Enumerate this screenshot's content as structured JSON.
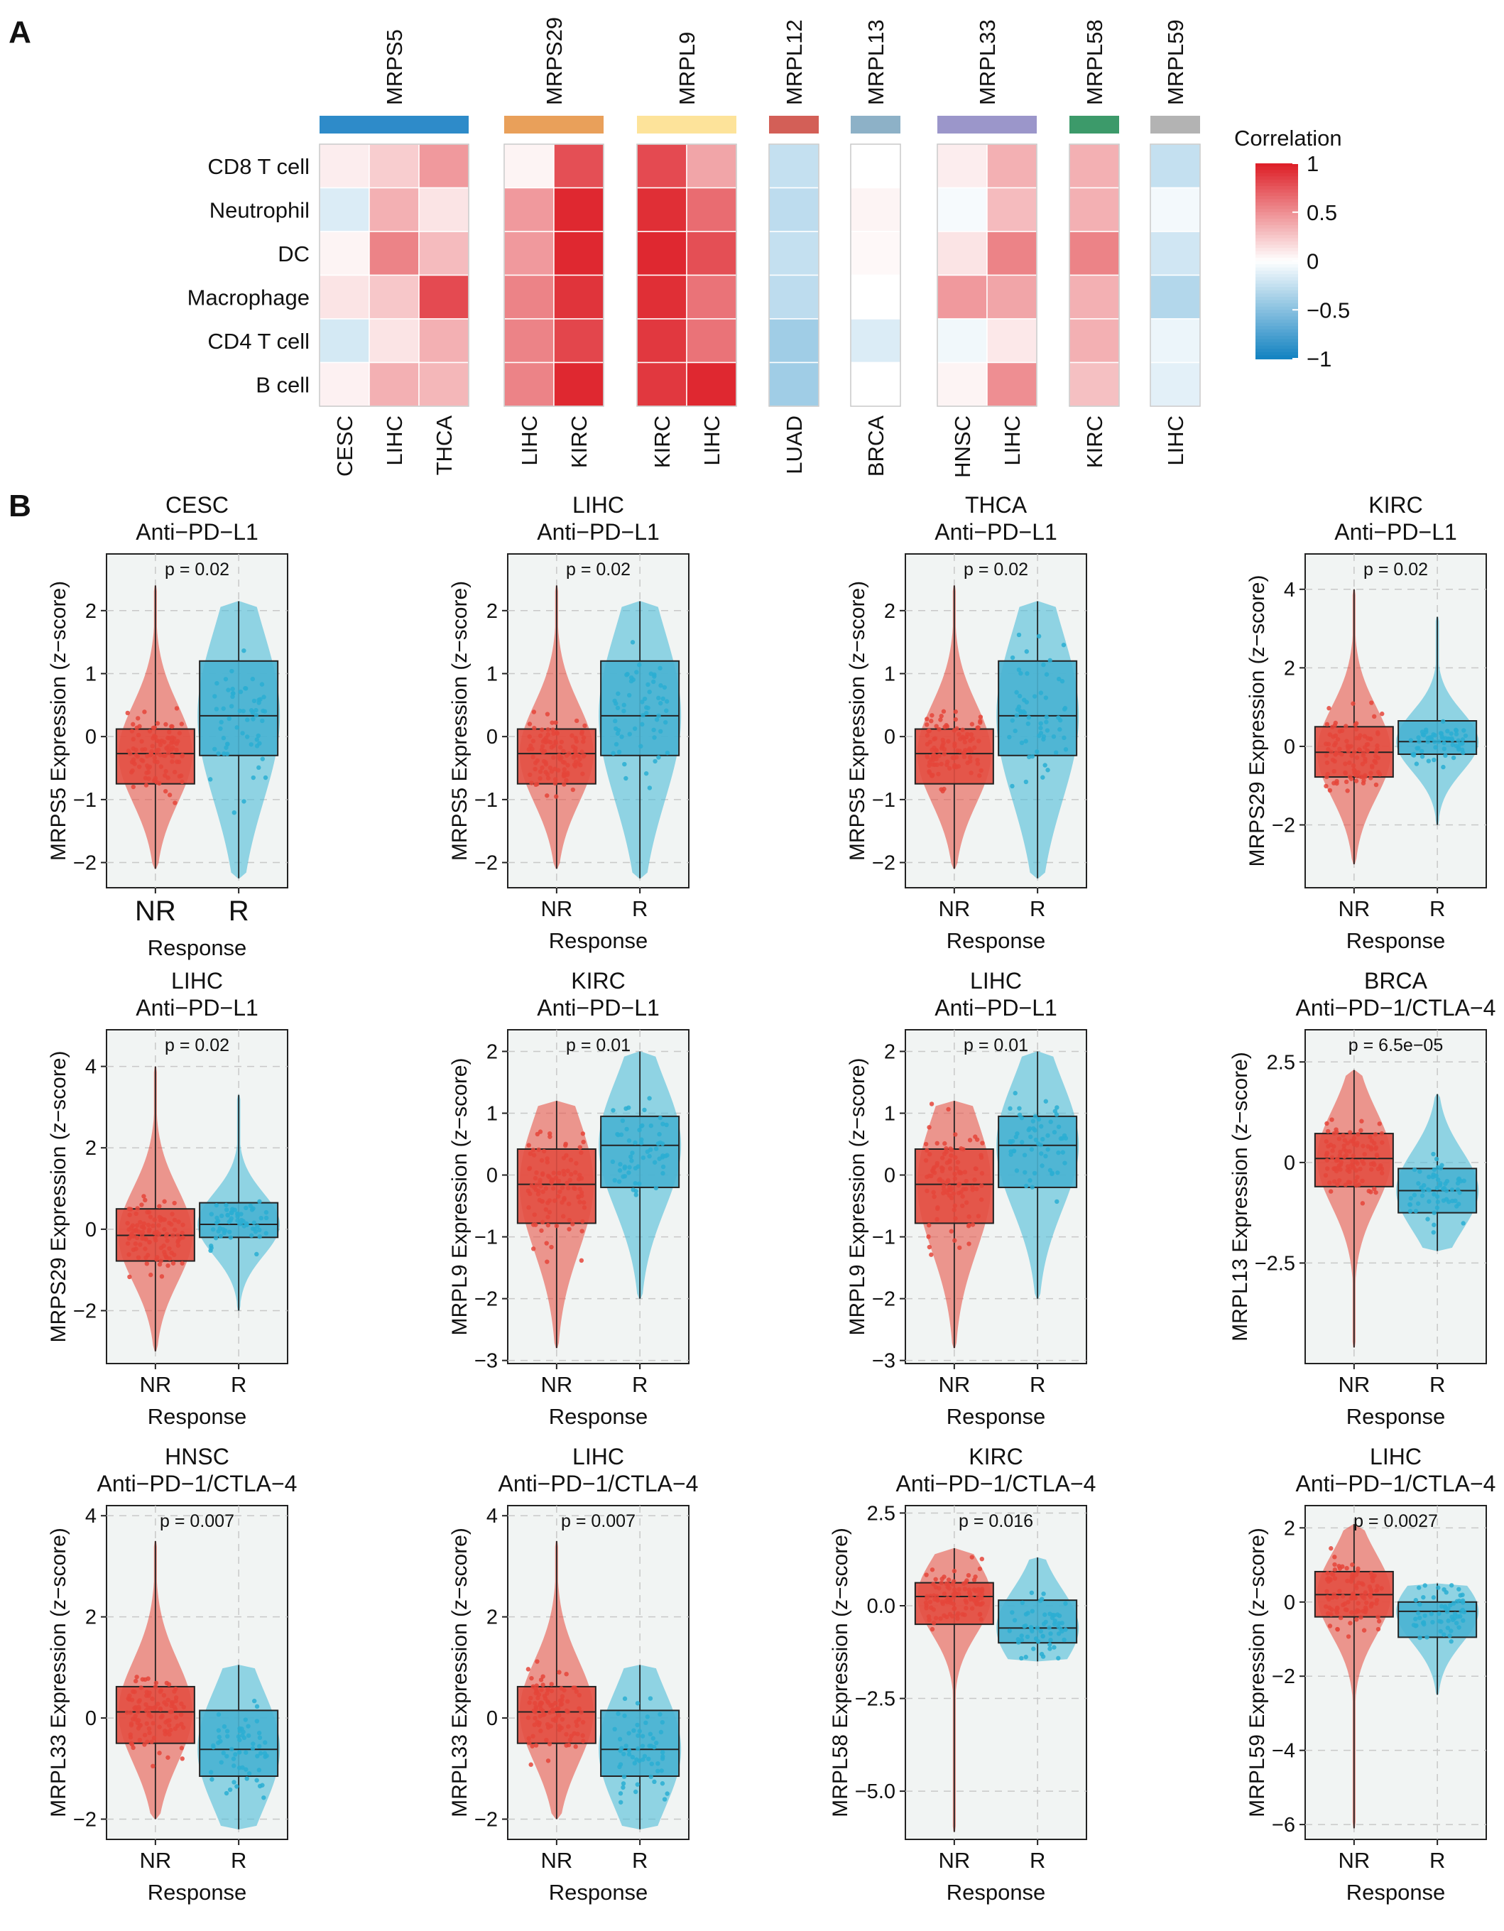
{
  "panel_labels": [
    "A",
    "B"
  ],
  "colors": {
    "nr": "#e8554a",
    "r": "#4fbcd9",
    "nr_box": "#e34f43",
    "r_box": "#49b3d2",
    "panel_bg": "#f1f4f3",
    "grid": "#c8c8c8",
    "scale_pos": "#e01b24",
    "scale_neg": "#1b7fc3"
  },
  "chart_data": [
    {
      "type": "heatmap",
      "panel": "A",
      "legend_title": "Correlation",
      "legend_ticks": [
        "1",
        "0.5",
        "0",
        "−0.5",
        "−1"
      ],
      "legend_values": [
        1,
        0.5,
        0,
        -0.5,
        -1
      ],
      "rows": [
        "CD8 T cell",
        "Neutrophil",
        "DC",
        "Macrophage",
        "CD4 T cell",
        "B cell"
      ],
      "groups": [
        {
          "gene": "MRPS5",
          "color": "#2e8bc9",
          "cancers": [
            "CESC",
            "LIHC",
            "THCA"
          ],
          "values": [
            [
              0.08,
              0.22,
              0.45
            ],
            [
              -0.15,
              0.35,
              0.12
            ],
            [
              0.05,
              0.55,
              0.3
            ],
            [
              0.12,
              0.25,
              0.8
            ],
            [
              -0.18,
              0.12,
              0.35
            ],
            [
              0.06,
              0.35,
              0.32
            ]
          ]
        },
        {
          "gene": "MRPS29",
          "color": "#e9a05a",
          "cancers": [
            "LIHC",
            "KIRC"
          ],
          "values": [
            [
              0.05,
              0.78
            ],
            [
              0.45,
              0.95
            ],
            [
              0.45,
              0.95
            ],
            [
              0.55,
              0.9
            ],
            [
              0.55,
              0.82
            ],
            [
              0.55,
              0.95
            ]
          ]
        },
        {
          "gene": "MRPL9",
          "color": "#fde39a",
          "cancers": [
            "KIRC",
            "LIHC"
          ],
          "values": [
            [
              0.8,
              0.4
            ],
            [
              0.92,
              0.65
            ],
            [
              0.95,
              0.78
            ],
            [
              0.92,
              0.62
            ],
            [
              0.88,
              0.62
            ],
            [
              0.88,
              0.95
            ]
          ]
        },
        {
          "gene": "MRPL12",
          "color": "#d35f57",
          "cancers": [
            "LUAD"
          ],
          "values": [
            [
              -0.25
            ],
            [
              -0.28
            ],
            [
              -0.25
            ],
            [
              -0.28
            ],
            [
              -0.4
            ],
            [
              -0.4
            ]
          ]
        },
        {
          "gene": "MRPL13",
          "color": "#8db1c7",
          "cancers": [
            "BRCA"
          ],
          "values": [
            [
              0.0
            ],
            [
              0.05
            ],
            [
              0.03
            ],
            [
              0.0
            ],
            [
              -0.15
            ],
            [
              0.0
            ]
          ]
        },
        {
          "gene": "MRPL33",
          "color": "#9b96ca",
          "cancers": [
            "HNSC",
            "LIHC"
          ],
          "values": [
            [
              0.08,
              0.35
            ],
            [
              -0.04,
              0.3
            ],
            [
              0.12,
              0.55
            ],
            [
              0.45,
              0.4
            ],
            [
              -0.06,
              0.1
            ],
            [
              0.05,
              0.5
            ]
          ]
        },
        {
          "gene": "MRPL58",
          "color": "#3c9a6a",
          "cancers": [
            "KIRC"
          ],
          "values": [
            [
              0.35
            ],
            [
              0.35
            ],
            [
              0.55
            ],
            [
              0.35
            ],
            [
              0.35
            ],
            [
              0.28
            ]
          ]
        },
        {
          "gene": "MRPL59",
          "color": "#b3b3b3",
          "cancers": [
            "LIHC"
          ],
          "values": [
            [
              -0.25
            ],
            [
              -0.05
            ],
            [
              -0.2
            ],
            [
              -0.32
            ],
            [
              -0.08
            ],
            [
              -0.12
            ]
          ]
        }
      ]
    },
    {
      "type": "box",
      "panel": "B",
      "title": "CESC",
      "subtitle": "Anti−PD−L1",
      "ylabel": "MRPS5 Expression (z−score)",
      "xlabel": "Response",
      "categories": [
        "NR",
        "R"
      ],
      "p_value": "p = 0.02",
      "ylim": [
        -2.4,
        2.9
      ],
      "yticks": [
        -2,
        -1,
        0,
        1,
        2
      ],
      "big_ticks": true,
      "series": [
        {
          "name": "NR",
          "min": -2.1,
          "q1": -0.75,
          "median": -0.27,
          "q3": 0.12,
          "max": 2.4
        },
        {
          "name": "R",
          "min": -2.25,
          "q1": -0.3,
          "median": 0.33,
          "q3": 1.2,
          "max": 2.15
        }
      ]
    },
    {
      "type": "box",
      "panel": "B",
      "title": "LIHC",
      "subtitle": "Anti−PD−L1",
      "ylabel": "MRPS5 Expression (z−score)",
      "xlabel": "Response",
      "categories": [
        "NR",
        "R"
      ],
      "p_value": "p = 0.02",
      "ylim": [
        -2.4,
        2.9
      ],
      "yticks": [
        -2,
        -1,
        0,
        1,
        2
      ],
      "series": [
        {
          "name": "NR",
          "min": -2.1,
          "q1": -0.75,
          "median": -0.27,
          "q3": 0.12,
          "max": 2.4
        },
        {
          "name": "R",
          "min": -2.25,
          "q1": -0.3,
          "median": 0.33,
          "q3": 1.2,
          "max": 2.15
        }
      ]
    },
    {
      "type": "box",
      "panel": "B",
      "title": "THCA",
      "subtitle": "Anti−PD−L1",
      "ylabel": "MRPS5 Expression (z−score)",
      "xlabel": "Response",
      "categories": [
        "NR",
        "R"
      ],
      "p_value": "p = 0.02",
      "ylim": [
        -2.4,
        2.9
      ],
      "yticks": [
        -2,
        -1,
        0,
        1,
        2
      ],
      "series": [
        {
          "name": "NR",
          "min": -2.1,
          "q1": -0.75,
          "median": -0.27,
          "q3": 0.12,
          "max": 2.4
        },
        {
          "name": "R",
          "min": -2.25,
          "q1": -0.3,
          "median": 0.33,
          "q3": 1.2,
          "max": 2.15
        }
      ]
    },
    {
      "type": "box",
      "panel": "B",
      "title": "KIRC",
      "subtitle": "Anti−PD−L1",
      "ylabel": "MRPS29 Expression (z−score)",
      "xlabel": "Response",
      "categories": [
        "NR",
        "R"
      ],
      "p_value": "p = 0.02",
      "ylim": [
        -3.6,
        4.9
      ],
      "yticks": [
        -2,
        0,
        2,
        4
      ],
      "series": [
        {
          "name": "NR",
          "min": -3.0,
          "q1": -0.78,
          "median": -0.15,
          "q3": 0.5,
          "max": 4.0
        },
        {
          "name": "R",
          "min": -2.0,
          "q1": -0.2,
          "median": 0.12,
          "q3": 0.65,
          "max": 3.3
        }
      ]
    },
    {
      "type": "box",
      "panel": "B",
      "title": "LIHC",
      "subtitle": "Anti−PD−L1",
      "ylabel": "MRPS29 Expression (z−score)",
      "xlabel": "Response",
      "categories": [
        "NR",
        "R"
      ],
      "p_value": "p = 0.02",
      "ylim": [
        -3.3,
        4.9
      ],
      "yticks": [
        -2,
        0,
        2,
        4
      ],
      "series": [
        {
          "name": "NR",
          "min": -3.0,
          "q1": -0.78,
          "median": -0.15,
          "q3": 0.5,
          "max": 4.0
        },
        {
          "name": "R",
          "min": -2.0,
          "q1": -0.2,
          "median": 0.12,
          "q3": 0.65,
          "max": 3.3
        }
      ]
    },
    {
      "type": "box",
      "panel": "B",
      "title": "KIRC",
      "subtitle": "Anti−PD−L1",
      "ylabel": "MRPL9 Expression (z−score)",
      "xlabel": "Response",
      "categories": [
        "NR",
        "R"
      ],
      "p_value": "p = 0.01",
      "ylim": [
        -3.05,
        2.35
      ],
      "yticks": [
        -3,
        -2,
        -1,
        0,
        1,
        2
      ],
      "series": [
        {
          "name": "NR",
          "min": -2.8,
          "q1": -0.78,
          "median": -0.15,
          "q3": 0.42,
          "max": 1.2
        },
        {
          "name": "R",
          "min": -2.0,
          "q1": -0.2,
          "median": 0.48,
          "q3": 0.95,
          "max": 2.0
        }
      ]
    },
    {
      "type": "box",
      "panel": "B",
      "title": "LIHC",
      "subtitle": "Anti−PD−L1",
      "ylabel": "MRPL9 Expression (z−score)",
      "xlabel": "Response",
      "categories": [
        "NR",
        "R"
      ],
      "p_value": "p = 0.01",
      "ylim": [
        -3.05,
        2.35
      ],
      "yticks": [
        -3,
        -2,
        -1,
        0,
        1,
        2
      ],
      "series": [
        {
          "name": "NR",
          "min": -2.8,
          "q1": -0.78,
          "median": -0.15,
          "q3": 0.42,
          "max": 1.2
        },
        {
          "name": "R",
          "min": -2.0,
          "q1": -0.2,
          "median": 0.48,
          "q3": 0.95,
          "max": 2.0
        }
      ]
    },
    {
      "type": "box",
      "panel": "B",
      "title": "BRCA",
      "subtitle": "Anti−PD−1/CTLA−4",
      "ylabel": "MRPL13 Expression (z−score)",
      "xlabel": "Response",
      "categories": [
        "NR",
        "R"
      ],
      "p_value": "p = 6.5e−05",
      "ylim": [
        -5.0,
        3.3
      ],
      "yticks": [
        -2.5,
        0,
        2.5
      ],
      "series": [
        {
          "name": "NR",
          "min": -4.6,
          "q1": -0.6,
          "median": 0.1,
          "q3": 0.72,
          "max": 2.3
        },
        {
          "name": "R",
          "min": -2.2,
          "q1": -1.25,
          "median": -0.7,
          "q3": -0.15,
          "max": 1.7
        }
      ]
    },
    {
      "type": "box",
      "panel": "B",
      "title": "HNSC",
      "subtitle": "Anti−PD−1/CTLA−4",
      "ylabel": "MRPL33 Expression (z−score)",
      "xlabel": "Response",
      "categories": [
        "NR",
        "R"
      ],
      "p_value": "p = 0.007",
      "ylim": [
        -2.4,
        4.2
      ],
      "yticks": [
        -2,
        0,
        2,
        4
      ],
      "series": [
        {
          "name": "NR",
          "min": -2.0,
          "q1": -0.5,
          "median": 0.12,
          "q3": 0.62,
          "max": 3.5
        },
        {
          "name": "R",
          "min": -2.2,
          "q1": -1.15,
          "median": -0.62,
          "q3": 0.15,
          "max": 1.05
        }
      ]
    },
    {
      "type": "box",
      "panel": "B",
      "title": "LIHC",
      "subtitle": "Anti−PD−1/CTLA−4",
      "ylabel": "MRPL33 Expression (z−score)",
      "xlabel": "Response",
      "categories": [
        "NR",
        "R"
      ],
      "p_value": "p = 0.007",
      "ylim": [
        -2.4,
        4.2
      ],
      "yticks": [
        -2,
        0,
        2,
        4
      ],
      "series": [
        {
          "name": "NR",
          "min": -2.0,
          "q1": -0.5,
          "median": 0.12,
          "q3": 0.62,
          "max": 3.5
        },
        {
          "name": "R",
          "min": -2.2,
          "q1": -1.15,
          "median": -0.62,
          "q3": 0.15,
          "max": 1.05
        }
      ]
    },
    {
      "type": "box",
      "panel": "B",
      "title": "KIRC",
      "subtitle": "Anti−PD−1/CTLA−4",
      "ylabel": "MRPL58 Expression (z−score)",
      "xlabel": "Response",
      "categories": [
        "NR",
        "R"
      ],
      "p_value": "p = 0.016",
      "ylim": [
        -6.3,
        2.7
      ],
      "yticks": [
        -5.0,
        -2.5,
        0.0,
        2.5
      ],
      "ytick_labels": [
        "−5.0",
        "−2.5",
        "0.0",
        "2.5"
      ],
      "series": [
        {
          "name": "NR",
          "min": -6.1,
          "q1": -0.5,
          "median": 0.25,
          "q3": 0.62,
          "max": 1.55
        },
        {
          "name": "R",
          "min": -1.5,
          "q1": -1.0,
          "median": -0.6,
          "q3": 0.15,
          "max": 1.3
        }
      ]
    },
    {
      "type": "box",
      "panel": "B",
      "title": "LIHC",
      "subtitle": "Anti−PD−1/CTLA−4",
      "ylabel": "MRPL59 Expression (z−score)",
      "xlabel": "Response",
      "categories": [
        "NR",
        "R"
      ],
      "p_value": "p = 0.0027",
      "ylim": [
        -6.4,
        2.6
      ],
      "yticks": [
        -6,
        -4,
        -2,
        0,
        2
      ],
      "series": [
        {
          "name": "NR",
          "min": -6.1,
          "q1": -0.4,
          "median": 0.2,
          "q3": 0.82,
          "max": 2.1
        },
        {
          "name": "R",
          "min": -2.5,
          "q1": -0.95,
          "median": -0.25,
          "q3": 0.0,
          "max": 0.5
        }
      ]
    }
  ]
}
